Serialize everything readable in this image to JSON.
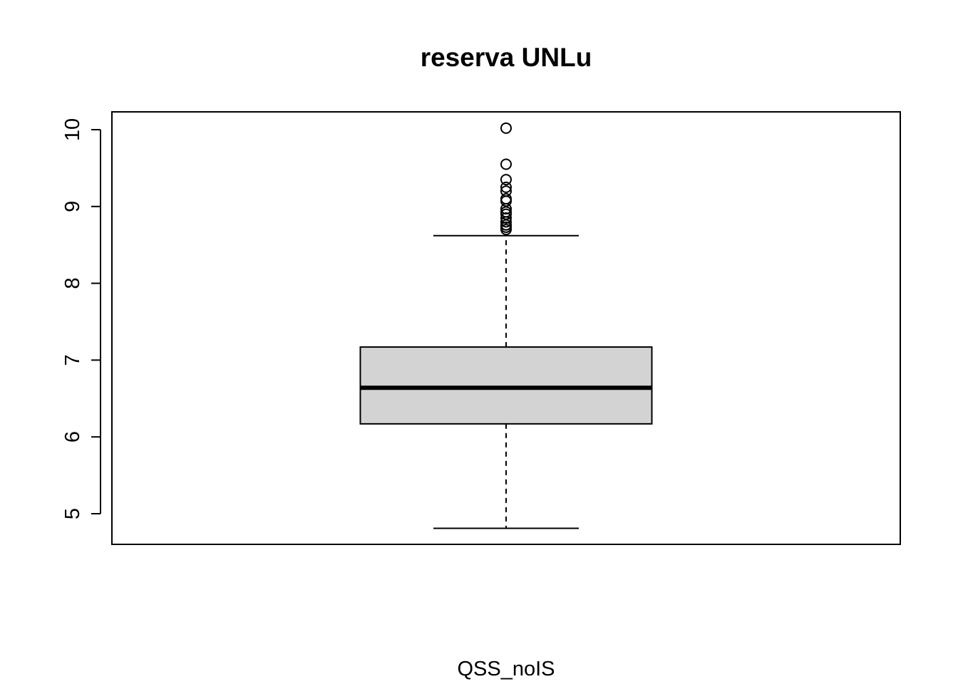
{
  "chart_data": {
    "type": "boxplot",
    "title": "reserva UNLu",
    "xlabel": "QSS_noIS",
    "ylabel": "",
    "ylim": [
      4.6,
      10.2
    ],
    "yticks": [
      5,
      6,
      7,
      8,
      9,
      10
    ],
    "ytick_labels": [
      "5",
      "6",
      "7",
      "8",
      "9",
      "10"
    ],
    "grid": false,
    "legend": "none",
    "colors": {
      "box_fill": "#d3d3d3",
      "stroke": "#000000"
    },
    "series": [
      {
        "stats": {
          "whisker_low": 4.81,
          "q1": 6.17,
          "median": 6.64,
          "q3": 7.17,
          "whisker_high": 8.62
        },
        "outliers": [
          10.02,
          9.55,
          9.35,
          9.25,
          9.2,
          9.1,
          9.07,
          8.97,
          8.93,
          8.9,
          8.85,
          8.8,
          8.76,
          8.73,
          8.7
        ]
      }
    ]
  }
}
